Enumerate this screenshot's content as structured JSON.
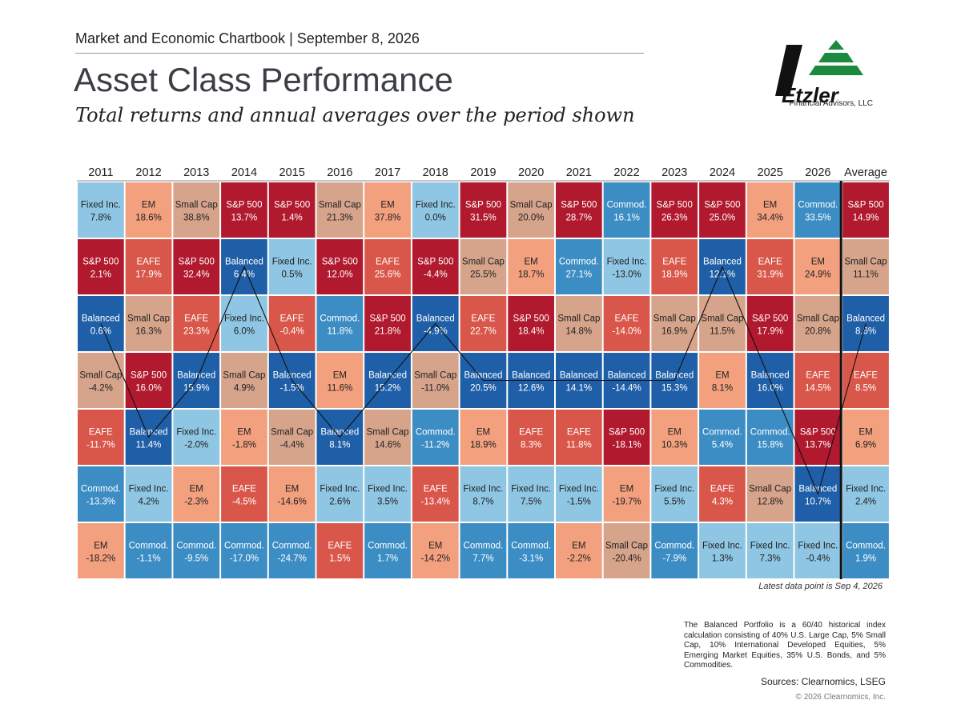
{
  "header": {
    "chartbook_line": "Market and Economic Chartbook | September 8, 2026",
    "title": "Asset Class Performance",
    "subtitle": "Total returns and annual averages over the period shown"
  },
  "logo": {
    "name": "Etzler",
    "tagline": "Financial Advisors, LLC"
  },
  "colors": {
    "S&P 500": "#b0192e",
    "Small Cap": "#d6a38b",
    "EM": "#f2a07e",
    "EAFE": "#d9574a",
    "Fixed Inc.": "#8ec6e3",
    "Commod.": "#3c8dc4",
    "Balanced": "#1f5fa8"
  },
  "chart_data": {
    "type": "table",
    "columns": [
      "2011",
      "2012",
      "2013",
      "2014",
      "2015",
      "2016",
      "2017",
      "2018",
      "2019",
      "2020",
      "2021",
      "2022",
      "2023",
      "2024",
      "2025",
      "2026",
      "Average"
    ],
    "cells": [
      [
        [
          "Fixed Inc.",
          "7.8%"
        ],
        [
          "S&P 500",
          "2.1%"
        ],
        [
          "Balanced",
          "0.6%"
        ],
        [
          "Small Cap",
          "-4.2%"
        ],
        [
          "EAFE",
          "-11.7%"
        ],
        [
          "Commod.",
          "-13.3%"
        ],
        [
          "EM",
          "-18.2%"
        ]
      ],
      [
        [
          "EM",
          "18.6%"
        ],
        [
          "EAFE",
          "17.9%"
        ],
        [
          "Small Cap",
          "16.3%"
        ],
        [
          "S&P 500",
          "16.0%"
        ],
        [
          "Balanced",
          "11.4%"
        ],
        [
          "Fixed Inc.",
          "4.2%"
        ],
        [
          "Commod.",
          "-1.1%"
        ]
      ],
      [
        [
          "Small Cap",
          "38.8%"
        ],
        [
          "S&P 500",
          "32.4%"
        ],
        [
          "EAFE",
          "23.3%"
        ],
        [
          "Balanced",
          "15.9%"
        ],
        [
          "Fixed Inc.",
          "-2.0%"
        ],
        [
          "EM",
          "-2.3%"
        ],
        [
          "Commod.",
          "-9.5%"
        ]
      ],
      [
        [
          "S&P 500",
          "13.7%"
        ],
        [
          "Balanced",
          "6.4%"
        ],
        [
          "Fixed Inc.",
          "6.0%"
        ],
        [
          "Small Cap",
          "4.9%"
        ],
        [
          "EM",
          "-1.8%"
        ],
        [
          "EAFE",
          "-4.5%"
        ],
        [
          "Commod.",
          "-17.0%"
        ]
      ],
      [
        [
          "S&P 500",
          "1.4%"
        ],
        [
          "Fixed Inc.",
          "0.5%"
        ],
        [
          "EAFE",
          "-0.4%"
        ],
        [
          "Balanced",
          "-1.5%"
        ],
        [
          "Small Cap",
          "-4.4%"
        ],
        [
          "EM",
          "-14.6%"
        ],
        [
          "Commod.",
          "-24.7%"
        ]
      ],
      [
        [
          "Small Cap",
          "21.3%"
        ],
        [
          "S&P 500",
          "12.0%"
        ],
        [
          "Commod.",
          "11.8%"
        ],
        [
          "EM",
          "11.6%"
        ],
        [
          "Balanced",
          "8.1%"
        ],
        [
          "Fixed Inc.",
          "2.6%"
        ],
        [
          "EAFE",
          "1.5%"
        ]
      ],
      [
        [
          "EM",
          "37.8%"
        ],
        [
          "EAFE",
          "25.6%"
        ],
        [
          "S&P 500",
          "21.8%"
        ],
        [
          "Balanced",
          "15.2%"
        ],
        [
          "Small Cap",
          "14.6%"
        ],
        [
          "Fixed Inc.",
          "3.5%"
        ],
        [
          "Commod.",
          "1.7%"
        ]
      ],
      [
        [
          "Fixed Inc.",
          "0.0%"
        ],
        [
          "S&P 500",
          "-4.4%"
        ],
        [
          "Balanced",
          "-4.9%"
        ],
        [
          "Small Cap",
          "-11.0%"
        ],
        [
          "Commod.",
          "-11.2%"
        ],
        [
          "EAFE",
          "-13.4%"
        ],
        [
          "EM",
          "-14.2%"
        ]
      ],
      [
        [
          "S&P 500",
          "31.5%"
        ],
        [
          "Small Cap",
          "25.5%"
        ],
        [
          "EAFE",
          "22.7%"
        ],
        [
          "Balanced",
          "20.5%"
        ],
        [
          "EM",
          "18.9%"
        ],
        [
          "Fixed Inc.",
          "8.7%"
        ],
        [
          "Commod.",
          "7.7%"
        ]
      ],
      [
        [
          "Small Cap",
          "20.0%"
        ],
        [
          "EM",
          "18.7%"
        ],
        [
          "S&P 500",
          "18.4%"
        ],
        [
          "Balanced",
          "12.6%"
        ],
        [
          "EAFE",
          "8.3%"
        ],
        [
          "Fixed Inc.",
          "7.5%"
        ],
        [
          "Commod.",
          "-3.1%"
        ]
      ],
      [
        [
          "S&P 500",
          "28.7%"
        ],
        [
          "Commod.",
          "27.1%"
        ],
        [
          "Small Cap",
          "14.8%"
        ],
        [
          "Balanced",
          "14.1%"
        ],
        [
          "EAFE",
          "11.8%"
        ],
        [
          "Fixed Inc.",
          "-1.5%"
        ],
        [
          "EM",
          "-2.2%"
        ]
      ],
      [
        [
          "Commod.",
          "16.1%"
        ],
        [
          "Fixed Inc.",
          "-13.0%"
        ],
        [
          "EAFE",
          "-14.0%"
        ],
        [
          "Balanced",
          "-14.4%"
        ],
        [
          "S&P 500",
          "-18.1%"
        ],
        [
          "EM",
          "-19.7%"
        ],
        [
          "Small Cap",
          "-20.4%"
        ]
      ],
      [
        [
          "S&P 500",
          "26.3%"
        ],
        [
          "EAFE",
          "18.9%"
        ],
        [
          "Small Cap",
          "16.9%"
        ],
        [
          "Balanced",
          "15.3%"
        ],
        [
          "EM",
          "10.3%"
        ],
        [
          "Fixed Inc.",
          "5.5%"
        ],
        [
          "Commod.",
          "-7.9%"
        ]
      ],
      [
        [
          "S&P 500",
          "25.0%"
        ],
        [
          "Balanced",
          "12.1%"
        ],
        [
          "Small Cap",
          "11.5%"
        ],
        [
          "EM",
          "8.1%"
        ],
        [
          "Commod.",
          "5.4%"
        ],
        [
          "EAFE",
          "4.3%"
        ],
        [
          "Fixed Inc.",
          "1.3%"
        ]
      ],
      [
        [
          "EM",
          "34.4%"
        ],
        [
          "EAFE",
          "31.9%"
        ],
        [
          "S&P 500",
          "17.9%"
        ],
        [
          "Balanced",
          "16.0%"
        ],
        [
          "Commod.",
          "15.8%"
        ],
        [
          "Small Cap",
          "12.8%"
        ],
        [
          "Fixed Inc.",
          "7.3%"
        ]
      ],
      [
        [
          "Commod.",
          "33.5%"
        ],
        [
          "EM",
          "24.9%"
        ],
        [
          "Small Cap",
          "20.8%"
        ],
        [
          "EAFE",
          "14.5%"
        ],
        [
          "S&P 500",
          "13.7%"
        ],
        [
          "Balanced",
          "10.7%"
        ],
        [
          "Fixed Inc.",
          "-0.4%"
        ]
      ],
      [
        [
          "S&P 500",
          "14.9%"
        ],
        [
          "Small Cap",
          "11.1%"
        ],
        [
          "Balanced",
          "8.6%"
        ],
        [
          "EAFE",
          "8.5%"
        ],
        [
          "EM",
          "6.9%"
        ],
        [
          "Fixed Inc.",
          "2.4%"
        ],
        [
          "Commod.",
          "1.9%"
        ]
      ]
    ],
    "highlight_series": "Balanced"
  },
  "notes": {
    "latest": "Latest data point is Sep 4, 2026",
    "footnote": "The Balanced Portfolio is a 60/40 historical index calculation consisting of 40% U.S. Large Cap, 5% Small Cap, 10% International Developed Equities, 5% Emerging Market Equities, 35% U.S. Bonds, and 5% Commodities.",
    "sources": "Sources: Clearnomics, LSEG",
    "copyright": "© 2026 Clearnomics, Inc."
  }
}
